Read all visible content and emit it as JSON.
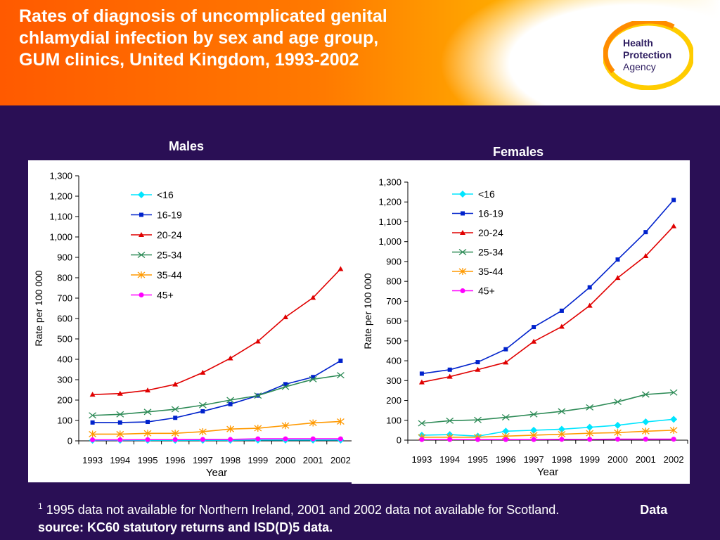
{
  "title": "Rates of diagnosis of uncomplicated genital chlamydial infection by sex and age group, GUM clinics, United Kingdom, 1993-2002",
  "logo": {
    "line1": "Health",
    "line2": "Protection",
    "line3": "Agency",
    "colors": [
      "#ff8c00",
      "#ffcc00",
      "#2b1a5e"
    ]
  },
  "footnote": {
    "marker": "1",
    "text": "1995 data not available for Northern Ireland, 2001 and 2002 data not available for Scotland.",
    "source": "Data source: KC60 statutory returns and ISD(D)5 data."
  },
  "colors": {
    "<16": "#00e5ff",
    "16-19": "#0022cc",
    "20-24": "#e00000",
    "25-34": "#2e8b57",
    "35-44": "#ff9900",
    "45+": "#ff00ff"
  },
  "chart_data": [
    {
      "type": "line",
      "title": "Males",
      "xlabel": "Year",
      "ylabel": "Rate per 100 000",
      "ylim": [
        0,
        1300
      ],
      "yticks": [
        "0",
        "100",
        "200",
        "300",
        "400",
        "500",
        "600",
        "700",
        "800",
        "900",
        "1,000",
        "1,100",
        "1,200",
        "1,300"
      ],
      "categories": [
        "1993",
        "1994",
        "1995",
        "1996",
        "1997",
        "1998",
        "1999",
        "2000",
        "2001",
        "2002"
      ],
      "legend": "upper-left inside",
      "series": [
        {
          "name": "<16",
          "marker": "diamond",
          "values": [
            3,
            3,
            3,
            3,
            3,
            3,
            4,
            4,
            4,
            4
          ]
        },
        {
          "name": "16-19",
          "marker": "square",
          "values": [
            90,
            90,
            93,
            113,
            145,
            180,
            222,
            278,
            313,
            393
          ]
        },
        {
          "name": "20-24",
          "marker": "triangle",
          "values": [
            227,
            232,
            248,
            277,
            335,
            405,
            488,
            607,
            702,
            843
          ]
        },
        {
          "name": "25-34",
          "marker": "x",
          "values": [
            125,
            130,
            142,
            155,
            175,
            200,
            222,
            265,
            302,
            322
          ]
        },
        {
          "name": "35-44",
          "marker": "asterisk",
          "values": [
            33,
            33,
            37,
            37,
            45,
            58,
            62,
            75,
            88,
            95
          ]
        },
        {
          "name": "45+",
          "marker": "circle",
          "values": [
            5,
            5,
            6,
            6,
            7,
            7,
            10,
            10,
            10,
            10
          ]
        }
      ]
    },
    {
      "type": "line",
      "title": "Females",
      "xlabel": "Year",
      "ylabel": "Rate per 100 000",
      "ylim": [
        0,
        1300
      ],
      "yticks": [
        "0",
        "100",
        "200",
        "300",
        "400",
        "500",
        "600",
        "700",
        "800",
        "900",
        "1,000",
        "1,100",
        "1,200",
        "1,300"
      ],
      "categories": [
        "1993",
        "1994",
        "1995",
        "1996",
        "1997",
        "1998",
        "1999",
        "2000",
        "2001",
        "2002"
      ],
      "legend": "upper-left inside",
      "series": [
        {
          "name": "<16",
          "marker": "diamond",
          "values": [
            25,
            28,
            20,
            45,
            50,
            55,
            65,
            75,
            92,
            105
          ]
        },
        {
          "name": "16-19",
          "marker": "square",
          "values": [
            335,
            355,
            393,
            458,
            570,
            652,
            770,
            910,
            1048,
            1210
          ]
        },
        {
          "name": "20-24",
          "marker": "triangle",
          "values": [
            292,
            320,
            355,
            392,
            497,
            572,
            678,
            818,
            928,
            1078
          ]
        },
        {
          "name": "25-34",
          "marker": "x",
          "values": [
            85,
            98,
            102,
            115,
            130,
            145,
            165,
            193,
            230,
            240
          ]
        },
        {
          "name": "35-44",
          "marker": "asterisk",
          "values": [
            15,
            15,
            15,
            20,
            25,
            30,
            35,
            38,
            45,
            50
          ]
        },
        {
          "name": "45+",
          "marker": "circle",
          "values": [
            3,
            3,
            3,
            3,
            3,
            4,
            4,
            5,
            5,
            5
          ]
        }
      ]
    }
  ]
}
